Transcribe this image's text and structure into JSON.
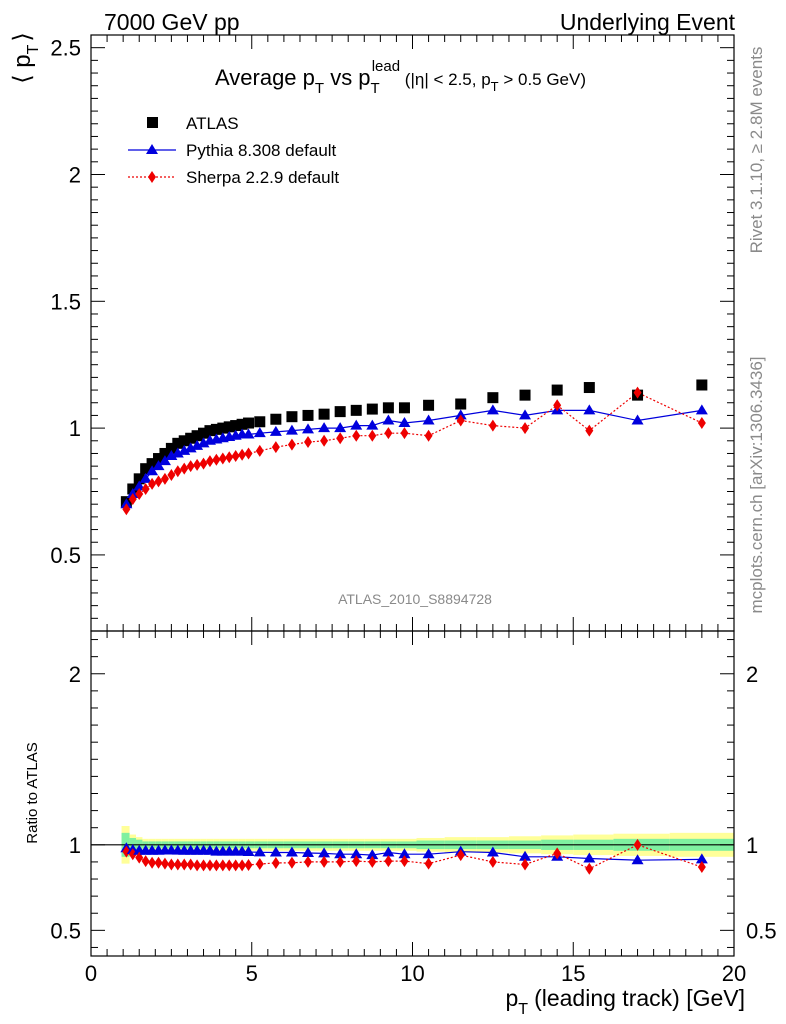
{
  "header": {
    "left": "7000 GeV pp",
    "right": "Underlying Event"
  },
  "side": {
    "rivet": "Rivet 3.1.10, ≥ 2.8M events",
    "mcplots": "mcplots.cern.ch [arXiv:1306.3436]"
  },
  "title": {
    "part1": "Average p",
    "sub1": "T",
    "part2": " vs p",
    "sub2": "T",
    "sup2": "lead",
    "cuts1": " (|η| < 2.5, p",
    "cuts_sub": "T",
    "cuts2": " > 0.5 GeV)"
  },
  "analysis_id": "ATLAS_2010_S8894728",
  "colors": {
    "data": "#000000",
    "pythia": "#0000dd",
    "sherpa": "#ee0000",
    "band_inner": "#7ff0a0",
    "band_outer": "#ffff99"
  },
  "chart_data": {
    "type": "scatter",
    "x_label": "(leading track) [GeV]",
    "x_label_prefix": "p",
    "x_label_sub": "T",
    "xlim": [
      0,
      20
    ],
    "x_ticks": [
      "0",
      "5",
      "10",
      "15",
      "20"
    ],
    "panels": [
      {
        "name": "main",
        "ylabel": "⟨ p",
        "ylabel_sub": "T",
        "ylabel_close": "⟩",
        "ylim": [
          0.2,
          2.55
        ],
        "y_ticks": [
          "0.5",
          "1",
          "1.5",
          "2",
          "2.5"
        ],
        "legend_position": "top-left"
      },
      {
        "name": "ratio",
        "ylabel": "Ratio to ATLAS",
        "ylim": [
          0.35,
          2.25
        ],
        "y_ticks": [
          "0.5",
          "1",
          "2"
        ],
        "y_ticks_right": [
          "0.5",
          "1",
          "2"
        ]
      }
    ],
    "x": [
      1.1,
      1.3,
      1.5,
      1.7,
      1.9,
      2.1,
      2.3,
      2.5,
      2.7,
      2.9,
      3.1,
      3.3,
      3.5,
      3.7,
      3.9,
      4.1,
      4.3,
      4.5,
      4.7,
      4.9,
      5.25,
      5.75,
      6.25,
      6.75,
      7.25,
      7.75,
      8.25,
      8.75,
      9.25,
      9.75,
      10.5,
      11.5,
      12.5,
      13.5,
      14.5,
      15.5,
      17.0,
      19.0
    ],
    "series": [
      {
        "name": "ATLAS",
        "marker": "square",
        "values": [
          0.71,
          0.76,
          0.8,
          0.84,
          0.86,
          0.88,
          0.9,
          0.92,
          0.94,
          0.95,
          0.96,
          0.97,
          0.98,
          0.99,
          0.995,
          1.0,
          1.005,
          1.01,
          1.015,
          1.02,
          1.025,
          1.035,
          1.045,
          1.05,
          1.055,
          1.065,
          1.07,
          1.075,
          1.08,
          1.08,
          1.09,
          1.095,
          1.12,
          1.13,
          1.15,
          1.16,
          1.13,
          1.17
        ]
      },
      {
        "name": "Pythia 8.308 default",
        "marker": "triangle",
        "line": "solid",
        "values": [
          0.7,
          0.74,
          0.77,
          0.8,
          0.83,
          0.85,
          0.87,
          0.89,
          0.9,
          0.91,
          0.92,
          0.93,
          0.94,
          0.95,
          0.955,
          0.96,
          0.965,
          0.97,
          0.975,
          0.975,
          0.98,
          0.985,
          0.99,
          0.995,
          1.0,
          1.0,
          1.01,
          1.01,
          1.03,
          1.02,
          1.03,
          1.05,
          1.07,
          1.05,
          1.07,
          1.07,
          1.03,
          1.07
        ]
      },
      {
        "name": "Sherpa 2.2.9 default",
        "marker": "diamond",
        "line": "dotted",
        "values": [
          0.68,
          0.72,
          0.74,
          0.76,
          0.78,
          0.79,
          0.8,
          0.815,
          0.83,
          0.84,
          0.85,
          0.855,
          0.86,
          0.87,
          0.875,
          0.88,
          0.885,
          0.89,
          0.895,
          0.9,
          0.91,
          0.925,
          0.935,
          0.945,
          0.95,
          0.96,
          0.97,
          0.97,
          0.98,
          0.98,
          0.97,
          1.03,
          1.01,
          1.0,
          1.09,
          0.99,
          1.14,
          1.02
        ]
      }
    ],
    "ratio_series": [
      {
        "name": "Pythia 8.308 default",
        "values": [
          0.98,
          0.97,
          0.965,
          0.965,
          0.965,
          0.965,
          0.967,
          0.967,
          0.966,
          0.965,
          0.965,
          0.965,
          0.965,
          0.965,
          0.96,
          0.96,
          0.96,
          0.96,
          0.96,
          0.958,
          0.956,
          0.955,
          0.955,
          0.952,
          0.95,
          0.945,
          0.945,
          0.94,
          0.955,
          0.945,
          0.945,
          0.96,
          0.955,
          0.93,
          0.93,
          0.92,
          0.91,
          0.915
        ]
      },
      {
        "name": "Sherpa 2.2.9 default",
        "values": [
          0.96,
          0.945,
          0.925,
          0.905,
          0.895,
          0.895,
          0.89,
          0.885,
          0.885,
          0.885,
          0.885,
          0.88,
          0.88,
          0.88,
          0.88,
          0.88,
          0.88,
          0.88,
          0.88,
          0.882,
          0.888,
          0.894,
          0.895,
          0.9,
          0.9,
          0.9,
          0.905,
          0.9,
          0.905,
          0.905,
          0.89,
          0.94,
          0.9,
          0.885,
          0.95,
          0.86,
          1.0,
          0.87
        ]
      }
    ],
    "uncertainty_band": {
      "inner_halfwidth": [
        0.07,
        0.04,
        0.03,
        0.02,
        0.02,
        0.02,
        0.02,
        0.02,
        0.02,
        0.02,
        0.02,
        0.02,
        0.02,
        0.02,
        0.02,
        0.02,
        0.02,
        0.02,
        0.02,
        0.02,
        0.02,
        0.02,
        0.02,
        0.02,
        0.02,
        0.02,
        0.02,
        0.02,
        0.02,
        0.02,
        0.025,
        0.025,
        0.025,
        0.025,
        0.03,
        0.03,
        0.035,
        0.035
      ],
      "outer_halfwidth": [
        0.11,
        0.06,
        0.045,
        0.035,
        0.035,
        0.035,
        0.035,
        0.035,
        0.035,
        0.035,
        0.035,
        0.035,
        0.035,
        0.035,
        0.035,
        0.035,
        0.035,
        0.035,
        0.035,
        0.035,
        0.035,
        0.035,
        0.035,
        0.035,
        0.035,
        0.035,
        0.035,
        0.035,
        0.035,
        0.035,
        0.04,
        0.045,
        0.045,
        0.05,
        0.055,
        0.06,
        0.065,
        0.07
      ]
    }
  }
}
